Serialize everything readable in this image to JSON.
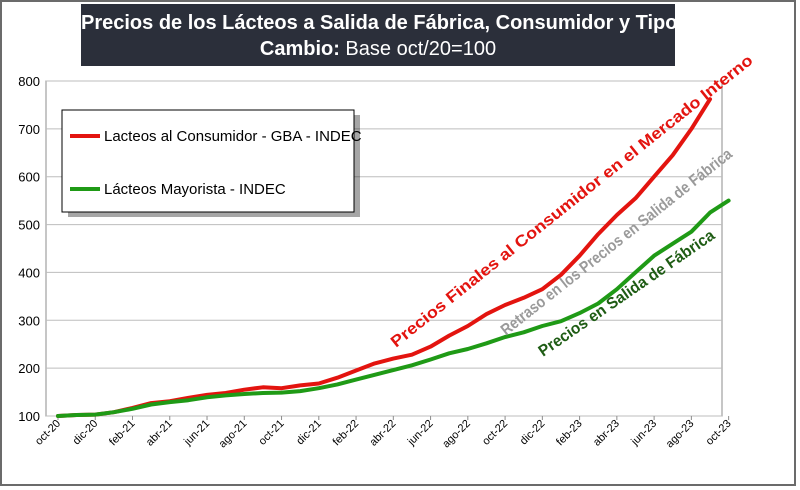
{
  "colors": {
    "consumer": "#e3140f",
    "wholesale": "#1f9a16",
    "grey_annotation": "#9a9a9a",
    "dark_green_annotation": "#1e5c14",
    "title_bg": "#2b2f3a"
  },
  "chart_data": {
    "type": "line",
    "title_line1": "Precios de los Lácteos a Salida de Fábrica, Consumidor y Tipo de",
    "title_line2_bold": "Cambio:",
    "title_line2_rest": " Base oct/20=100",
    "ylim": [
      100,
      800
    ],
    "yticks": [
      100,
      200,
      300,
      400,
      500,
      600,
      700,
      800
    ],
    "x_tick_labels": [
      "oct-20",
      "dic-20",
      "feb-21",
      "abr-21",
      "jun-21",
      "ago-21",
      "oct-21",
      "dic-21",
      "feb-22",
      "abr-22",
      "jun-22",
      "ago-22",
      "oct-22",
      "dic-22",
      "feb-23",
      "abr-23",
      "jun-23",
      "ago-23",
      "oct-23"
    ],
    "series": [
      {
        "name": "Lacteos al Consumidor - GBA - INDEC",
        "key": "consumer",
        "values": [
          100,
          102,
          103,
          108,
          117,
          127,
          131,
          138,
          144,
          148,
          155,
          160,
          158,
          164,
          168,
          180,
          195,
          210,
          220,
          228,
          245,
          268,
          288,
          313,
          332,
          347,
          365,
          395,
          435,
          480,
          520,
          555,
          600,
          645,
          700,
          762
        ]
      },
      {
        "name": "Lácteos Mayorista - INDEC",
        "key": "wholesale",
        "values": [
          100,
          102,
          103,
          108,
          115,
          124,
          129,
          133,
          139,
          143,
          146,
          148,
          149,
          152,
          158,
          166,
          176,
          186,
          196,
          206,
          218,
          231,
          240,
          252,
          265,
          275,
          288,
          298,
          315,
          335,
          365,
          400,
          435,
          460,
          485,
          525,
          550
        ]
      }
    ],
    "legend": [
      "Lacteos al Consumidor - GBA - INDEC",
      "Lácteos Mayorista - INDEC"
    ],
    "legend_position": "top-left",
    "annotations": [
      {
        "text": "Precios Finales al Consumidor en el Mercado Interno",
        "color_key": "consumer"
      },
      {
        "text": "Retraso en los Precios en Salida de Fábrica",
        "color_key": "grey_annotation"
      },
      {
        "text": "Precios en Salida de Fábrica",
        "color_key": "dark_green_annotation"
      }
    ]
  }
}
